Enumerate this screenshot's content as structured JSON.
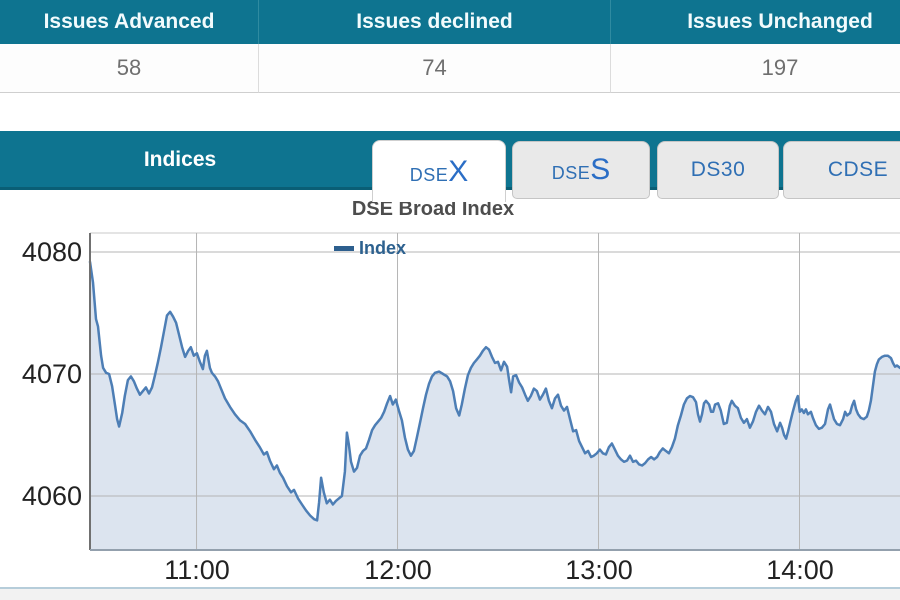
{
  "issues_table": {
    "columns": [
      {
        "label": "Issues Advanced",
        "value": "58"
      },
      {
        "label": "Issues declined",
        "value": "74"
      },
      {
        "label": "Issues Unchanged",
        "value": "197"
      }
    ]
  },
  "indices": {
    "title": "Indices",
    "tabs": [
      {
        "prefix": "DSE",
        "suffix": "X",
        "active": true
      },
      {
        "prefix": "DSE",
        "suffix": "S",
        "active": false
      },
      {
        "label": "DS30",
        "active": false
      },
      {
        "label": "CDSE",
        "active": false
      }
    ]
  },
  "colors": {
    "teal": "#0e7490",
    "line": "#4d7eb5",
    "fill": "#dce4ef",
    "grid": "#b5b5b5",
    "axis_left": "#707070",
    "axis_bottom": "#93a0ad"
  },
  "chart_data": {
    "type": "area",
    "title": "DSE Broad Index",
    "legend": [
      "Index"
    ],
    "xlabel": "",
    "ylabel": "",
    "y_axis": {
      "ticks": [
        4080,
        4070,
        4060
      ],
      "range": [
        4055.6,
        4081.6
      ],
      "grid": true
    },
    "x_axis": {
      "tick_labels": [
        "11:00",
        "12:00",
        "13:00",
        "14:00"
      ],
      "tick_minutes": [
        31.8,
        91.8,
        151.8,
        211.8
      ],
      "start_time": "10:28",
      "end_time": "14:30",
      "total_minutes": 241.8,
      "grid": true
    },
    "series": [
      {
        "name": "Index",
        "color": "#4d7eb5",
        "fill": "#dce4ef",
        "points": [
          [
            0.0,
            4079.2
          ],
          [
            0.9,
            4077.5
          ],
          [
            1.8,
            4074.5
          ],
          [
            2.4,
            4073.9
          ],
          [
            3.3,
            4071.5
          ],
          [
            3.9,
            4070.5
          ],
          [
            4.8,
            4070.1
          ],
          [
            5.7,
            4070.0
          ],
          [
            6.6,
            4069.0
          ],
          [
            7.5,
            4067.4
          ],
          [
            8.1,
            4066.3
          ],
          [
            8.7,
            4065.7
          ],
          [
            9.6,
            4066.8
          ],
          [
            10.4,
            4068.2
          ],
          [
            11.3,
            4069.5
          ],
          [
            12.2,
            4069.8
          ],
          [
            13.1,
            4069.4
          ],
          [
            14.0,
            4068.8
          ],
          [
            14.9,
            4068.3
          ],
          [
            15.8,
            4068.6
          ],
          [
            16.7,
            4068.9
          ],
          [
            17.6,
            4068.4
          ],
          [
            18.5,
            4068.9
          ],
          [
            19.4,
            4069.9
          ],
          [
            20.3,
            4071.0
          ],
          [
            21.2,
            4072.2
          ],
          [
            22.1,
            4073.5
          ],
          [
            23.0,
            4074.8
          ],
          [
            23.9,
            4075.1
          ],
          [
            24.8,
            4074.7
          ],
          [
            25.7,
            4074.2
          ],
          [
            26.6,
            4073.2
          ],
          [
            27.5,
            4072.2
          ],
          [
            28.4,
            4071.4
          ],
          [
            29.3,
            4071.9
          ],
          [
            30.1,
            4072.2
          ],
          [
            31.0,
            4071.5
          ],
          [
            31.9,
            4071.7
          ],
          [
            32.8,
            4071.0
          ],
          [
            33.7,
            4070.4
          ],
          [
            34.3,
            4071.5
          ],
          [
            34.9,
            4071.9
          ],
          [
            35.8,
            4070.5
          ],
          [
            36.4,
            4070.1
          ],
          [
            37.3,
            4069.8
          ],
          [
            38.2,
            4069.4
          ],
          [
            38.8,
            4069.0
          ],
          [
            40.3,
            4068.0
          ],
          [
            41.8,
            4067.3
          ],
          [
            43.3,
            4066.7
          ],
          [
            44.8,
            4066.2
          ],
          [
            46.3,
            4065.9
          ],
          [
            47.8,
            4065.3
          ],
          [
            49.3,
            4064.6
          ],
          [
            50.7,
            4064.0
          ],
          [
            51.9,
            4063.4
          ],
          [
            52.8,
            4063.6
          ],
          [
            53.7,
            4062.9
          ],
          [
            54.9,
            4062.2
          ],
          [
            55.8,
            4062.5
          ],
          [
            56.7,
            4061.9
          ],
          [
            57.6,
            4061.5
          ],
          [
            58.8,
            4060.8
          ],
          [
            60.0,
            4060.3
          ],
          [
            60.9,
            4060.5
          ],
          [
            62.1,
            4059.8
          ],
          [
            63.3,
            4059.3
          ],
          [
            64.5,
            4058.8
          ],
          [
            65.7,
            4058.4
          ],
          [
            66.9,
            4058.1
          ],
          [
            67.8,
            4058.0
          ],
          [
            68.4,
            4059.5
          ],
          [
            69.0,
            4061.5
          ],
          [
            69.8,
            4060.3
          ],
          [
            70.7,
            4059.4
          ],
          [
            71.6,
            4059.7
          ],
          [
            72.5,
            4059.3
          ],
          [
            73.4,
            4059.6
          ],
          [
            74.3,
            4059.8
          ],
          [
            75.2,
            4060.0
          ],
          [
            76.1,
            4062.0
          ],
          [
            76.7,
            4065.2
          ],
          [
            77.3,
            4064.2
          ],
          [
            77.9,
            4062.8
          ],
          [
            78.8,
            4062.0
          ],
          [
            79.7,
            4062.3
          ],
          [
            80.6,
            4063.3
          ],
          [
            81.5,
            4063.7
          ],
          [
            82.4,
            4063.9
          ],
          [
            83.3,
            4064.6
          ],
          [
            84.2,
            4065.4
          ],
          [
            85.1,
            4065.8
          ],
          [
            86.0,
            4066.1
          ],
          [
            86.9,
            4066.4
          ],
          [
            87.8,
            4066.9
          ],
          [
            88.7,
            4067.6
          ],
          [
            89.6,
            4068.2
          ],
          [
            90.4,
            4067.5
          ],
          [
            91.3,
            4067.9
          ],
          [
            92.2,
            4067.0
          ],
          [
            93.1,
            4066.2
          ],
          [
            94.0,
            4064.8
          ],
          [
            94.9,
            4063.8
          ],
          [
            95.8,
            4063.3
          ],
          [
            96.7,
            4063.7
          ],
          [
            97.6,
            4064.8
          ],
          [
            98.5,
            4066.0
          ],
          [
            99.4,
            4067.2
          ],
          [
            100.3,
            4068.3
          ],
          [
            101.2,
            4069.2
          ],
          [
            102.1,
            4069.8
          ],
          [
            103.0,
            4070.1
          ],
          [
            104.2,
            4070.2
          ],
          [
            105.4,
            4070.0
          ],
          [
            106.6,
            4069.8
          ],
          [
            107.5,
            4069.4
          ],
          [
            108.4,
            4068.6
          ],
          [
            109.3,
            4067.2
          ],
          [
            110.2,
            4066.6
          ],
          [
            111.0,
            4067.5
          ],
          [
            111.9,
            4068.8
          ],
          [
            112.8,
            4069.9
          ],
          [
            113.7,
            4070.5
          ],
          [
            114.6,
            4070.9
          ],
          [
            115.5,
            4071.2
          ],
          [
            116.4,
            4071.5
          ],
          [
            117.3,
            4071.9
          ],
          [
            118.2,
            4072.2
          ],
          [
            119.1,
            4072.0
          ],
          [
            120.0,
            4071.4
          ],
          [
            120.9,
            4070.9
          ],
          [
            121.8,
            4071.0
          ],
          [
            122.7,
            4070.3
          ],
          [
            123.6,
            4071.0
          ],
          [
            124.5,
            4070.6
          ],
          [
            125.1,
            4069.5
          ],
          [
            125.7,
            4068.5
          ],
          [
            126.3,
            4069.8
          ],
          [
            127.2,
            4069.9
          ],
          [
            128.1,
            4069.3
          ],
          [
            129.0,
            4068.9
          ],
          [
            129.9,
            4068.3
          ],
          [
            130.7,
            4067.8
          ],
          [
            131.6,
            4068.2
          ],
          [
            132.5,
            4068.8
          ],
          [
            133.4,
            4068.6
          ],
          [
            134.3,
            4067.9
          ],
          [
            135.2,
            4068.3
          ],
          [
            136.1,
            4068.8
          ],
          [
            137.0,
            4067.8
          ],
          [
            137.9,
            4067.2
          ],
          [
            138.8,
            4068.0
          ],
          [
            139.7,
            4068.3
          ],
          [
            140.6,
            4067.4
          ],
          [
            141.5,
            4067.0
          ],
          [
            142.4,
            4067.3
          ],
          [
            143.3,
            4066.3
          ],
          [
            144.2,
            4065.3
          ],
          [
            145.1,
            4065.4
          ],
          [
            146.0,
            4064.5
          ],
          [
            146.9,
            4064.0
          ],
          [
            147.8,
            4063.5
          ],
          [
            148.7,
            4063.7
          ],
          [
            149.6,
            4063.2
          ],
          [
            150.4,
            4063.3
          ],
          [
            151.3,
            4063.5
          ],
          [
            152.2,
            4063.8
          ],
          [
            153.1,
            4063.5
          ],
          [
            154.0,
            4063.4
          ],
          [
            154.9,
            4064.0
          ],
          [
            155.8,
            4064.3
          ],
          [
            156.7,
            4063.8
          ],
          [
            157.6,
            4063.3
          ],
          [
            158.5,
            4063.0
          ],
          [
            159.4,
            4062.8
          ],
          [
            160.3,
            4062.9
          ],
          [
            161.2,
            4063.3
          ],
          [
            162.1,
            4062.8
          ],
          [
            163.0,
            4062.9
          ],
          [
            163.9,
            4062.6
          ],
          [
            164.8,
            4062.5
          ],
          [
            165.7,
            4062.7
          ],
          [
            166.6,
            4063.0
          ],
          [
            167.5,
            4063.2
          ],
          [
            168.4,
            4063.0
          ],
          [
            169.3,
            4063.2
          ],
          [
            170.1,
            4063.6
          ],
          [
            171.0,
            4063.9
          ],
          [
            171.9,
            4063.7
          ],
          [
            172.8,
            4063.5
          ],
          [
            173.7,
            4064.0
          ],
          [
            174.6,
            4064.7
          ],
          [
            175.5,
            4065.8
          ],
          [
            176.4,
            4066.6
          ],
          [
            177.3,
            4067.5
          ],
          [
            178.2,
            4068.0
          ],
          [
            179.1,
            4068.2
          ],
          [
            180.0,
            4068.1
          ],
          [
            180.9,
            4067.7
          ],
          [
            181.5,
            4066.7
          ],
          [
            182.1,
            4066.1
          ],
          [
            182.7,
            4066.7
          ],
          [
            183.3,
            4067.6
          ],
          [
            183.9,
            4067.8
          ],
          [
            184.8,
            4067.5
          ],
          [
            185.4,
            4066.9
          ],
          [
            186.0,
            4066.9
          ],
          [
            186.6,
            4067.5
          ],
          [
            187.5,
            4067.6
          ],
          [
            188.3,
            4067.0
          ],
          [
            189.2,
            4065.9
          ],
          [
            190.1,
            4066.0
          ],
          [
            191.0,
            4067.4
          ],
          [
            191.6,
            4067.8
          ],
          [
            192.5,
            4067.4
          ],
          [
            193.4,
            4067.2
          ],
          [
            194.3,
            4066.4
          ],
          [
            195.2,
            4066.0
          ],
          [
            196.1,
            4066.3
          ],
          [
            197.0,
            4065.6
          ],
          [
            197.9,
            4066.1
          ],
          [
            198.8,
            4066.9
          ],
          [
            199.7,
            4067.4
          ],
          [
            200.6,
            4067.0
          ],
          [
            201.5,
            4066.7
          ],
          [
            202.4,
            4067.3
          ],
          [
            203.3,
            4066.9
          ],
          [
            204.2,
            4065.9
          ],
          [
            205.1,
            4065.3
          ],
          [
            206.0,
            4066.0
          ],
          [
            206.6,
            4065.6
          ],
          [
            207.2,
            4065.0
          ],
          [
            207.8,
            4064.7
          ],
          [
            208.4,
            4065.3
          ],
          [
            209.0,
            4066.0
          ],
          [
            209.8,
            4066.9
          ],
          [
            210.7,
            4067.8
          ],
          [
            211.3,
            4068.2
          ],
          [
            211.9,
            4066.9
          ],
          [
            212.5,
            4067.1
          ],
          [
            213.1,
            4066.8
          ],
          [
            213.7,
            4067.1
          ],
          [
            214.3,
            4066.7
          ],
          [
            215.2,
            4066.9
          ],
          [
            215.8,
            4066.4
          ],
          [
            216.7,
            4065.8
          ],
          [
            217.6,
            4065.5
          ],
          [
            218.5,
            4065.6
          ],
          [
            219.4,
            4065.9
          ],
          [
            220.3,
            4067.1
          ],
          [
            220.9,
            4067.5
          ],
          [
            221.5,
            4066.9
          ],
          [
            222.1,
            4066.3
          ],
          [
            223.0,
            4065.9
          ],
          [
            223.9,
            4065.8
          ],
          [
            224.8,
            4066.3
          ],
          [
            225.4,
            4066.9
          ],
          [
            226.0,
            4066.6
          ],
          [
            226.9,
            4066.8
          ],
          [
            227.5,
            4067.4
          ],
          [
            228.1,
            4067.8
          ],
          [
            228.7,
            4067.1
          ],
          [
            229.3,
            4066.7
          ],
          [
            230.1,
            4066.4
          ],
          [
            231.0,
            4066.3
          ],
          [
            231.9,
            4066.5
          ],
          [
            232.5,
            4067.0
          ],
          [
            233.1,
            4067.8
          ],
          [
            233.7,
            4069.0
          ],
          [
            234.3,
            4070.2
          ],
          [
            234.9,
            4070.8
          ],
          [
            235.5,
            4071.2
          ],
          [
            236.4,
            4071.4
          ],
          [
            237.3,
            4071.5
          ],
          [
            238.2,
            4071.5
          ],
          [
            239.1,
            4071.3
          ],
          [
            239.7,
            4070.9
          ],
          [
            240.3,
            4070.6
          ],
          [
            240.9,
            4070.7
          ],
          [
            241.8,
            4070.5
          ]
        ]
      }
    ]
  }
}
